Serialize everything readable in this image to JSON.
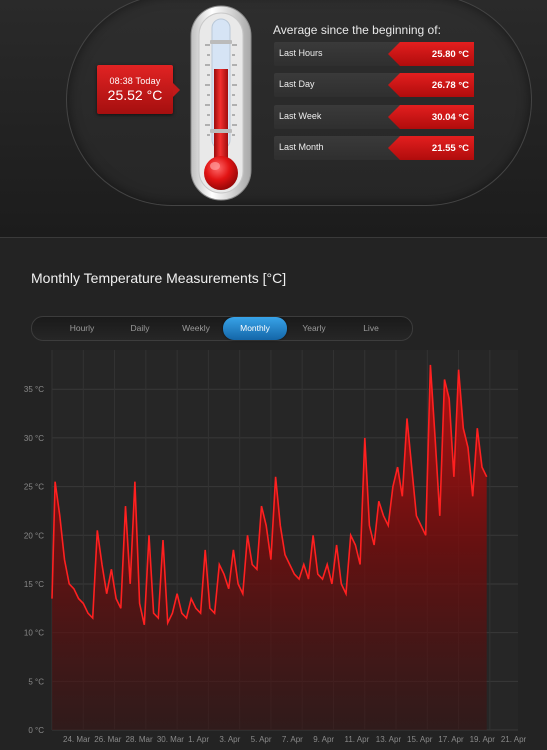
{
  "current": {
    "time": "08:38 Today",
    "temperature": "25.52 °C"
  },
  "averages": {
    "title": "Average since the beginning of:",
    "rows": [
      {
        "label": "Last Hours",
        "value": "25.80 °C"
      },
      {
        "label": "Last Day",
        "value": "26.78 °C"
      },
      {
        "label": "Last Week",
        "value": "30.04 °C"
      },
      {
        "label": "Last Month",
        "value": "21.55 °C"
      }
    ]
  },
  "chart_section": {
    "title": "Monthly Temperature Measurements [°C]",
    "tabs": [
      "Hourly",
      "Daily",
      "Weekly",
      "Monthly",
      "Yearly",
      "Live"
    ],
    "active_tab": "Monthly"
  },
  "colors": {
    "accent": "#d81818",
    "tab_active": "#1f7cc4"
  },
  "chart_data": {
    "type": "area",
    "title": "",
    "xlabel": "",
    "ylabel": "",
    "ylim": [
      0,
      38
    ],
    "yticks": [
      "0 °C",
      "5 °C",
      "10 °C",
      "15 °C",
      "20 °C",
      "25 °C",
      "30 °C",
      "35 °C"
    ],
    "xticks": [
      "24. Mar",
      "26. Mar",
      "28. Mar",
      "30. Mar",
      "1. Apr",
      "3. Apr",
      "5. Apr",
      "7. Apr",
      "9. Apr",
      "11. Apr",
      "13. Apr",
      "15. Apr",
      "17. Apr",
      "19. Apr",
      "21. Apr"
    ],
    "x_range_days": [
      0,
      29.8
    ],
    "grid": true,
    "series": [
      {
        "values": [
          [
            0.0,
            13.5
          ],
          [
            0.2,
            25.5
          ],
          [
            0.5,
            22
          ],
          [
            0.8,
            17.5
          ],
          [
            1.1,
            15
          ],
          [
            1.4,
            14.5
          ],
          [
            1.7,
            13.5
          ],
          [
            2.0,
            13
          ],
          [
            2.3,
            12
          ],
          [
            2.6,
            11.5
          ],
          [
            2.9,
            20.5
          ],
          [
            3.2,
            17
          ],
          [
            3.5,
            14
          ],
          [
            3.8,
            16.5
          ],
          [
            4.1,
            13.5
          ],
          [
            4.4,
            12.5
          ],
          [
            4.7,
            23
          ],
          [
            5.0,
            15
          ],
          [
            5.3,
            25.5
          ],
          [
            5.6,
            13
          ],
          [
            5.9,
            10.8
          ],
          [
            6.2,
            20
          ],
          [
            6.5,
            12
          ],
          [
            6.8,
            11.5
          ],
          [
            7.1,
            19.5
          ],
          [
            7.4,
            11
          ],
          [
            7.7,
            12
          ],
          [
            8.0,
            14
          ],
          [
            8.3,
            12
          ],
          [
            8.6,
            11.5
          ],
          [
            8.9,
            13.5
          ],
          [
            9.2,
            12.5
          ],
          [
            9.5,
            12
          ],
          [
            9.8,
            18.5
          ],
          [
            10.1,
            12.5
          ],
          [
            10.4,
            12
          ],
          [
            10.7,
            17
          ],
          [
            11.0,
            16
          ],
          [
            11.3,
            14.5
          ],
          [
            11.6,
            18.5
          ],
          [
            11.9,
            15
          ],
          [
            12.2,
            14
          ],
          [
            12.5,
            20
          ],
          [
            12.8,
            17
          ],
          [
            13.1,
            16.5
          ],
          [
            13.4,
            23
          ],
          [
            13.7,
            21
          ],
          [
            14.0,
            17.5
          ],
          [
            14.3,
            26
          ],
          [
            14.6,
            21
          ],
          [
            14.9,
            18
          ],
          [
            15.2,
            17
          ],
          [
            15.5,
            16
          ],
          [
            15.8,
            15.5
          ],
          [
            16.1,
            17
          ],
          [
            16.4,
            15.5
          ],
          [
            16.7,
            20
          ],
          [
            17.0,
            16
          ],
          [
            17.3,
            15.5
          ],
          [
            17.6,
            17
          ],
          [
            17.9,
            15
          ],
          [
            18.2,
            19
          ],
          [
            18.5,
            15
          ],
          [
            18.8,
            14
          ],
          [
            19.1,
            20
          ],
          [
            19.4,
            19
          ],
          [
            19.7,
            17
          ],
          [
            20.0,
            30
          ],
          [
            20.3,
            21
          ],
          [
            20.6,
            19
          ],
          [
            20.9,
            23.5
          ],
          [
            21.2,
            22
          ],
          [
            21.5,
            21
          ],
          [
            21.8,
            25
          ],
          [
            22.1,
            27
          ],
          [
            22.4,
            24
          ],
          [
            22.7,
            32
          ],
          [
            23.0,
            27
          ],
          [
            23.3,
            22
          ],
          [
            23.6,
            21
          ],
          [
            23.9,
            20
          ],
          [
            24.2,
            37.5
          ],
          [
            24.5,
            30
          ],
          [
            24.8,
            22
          ],
          [
            25.1,
            36
          ],
          [
            25.4,
            34
          ],
          [
            25.7,
            26
          ],
          [
            26.0,
            37
          ],
          [
            26.3,
            31
          ],
          [
            26.6,
            29
          ],
          [
            26.9,
            24
          ],
          [
            27.2,
            31
          ],
          [
            27.5,
            27
          ],
          [
            27.8,
            26
          ]
        ]
      }
    ]
  }
}
